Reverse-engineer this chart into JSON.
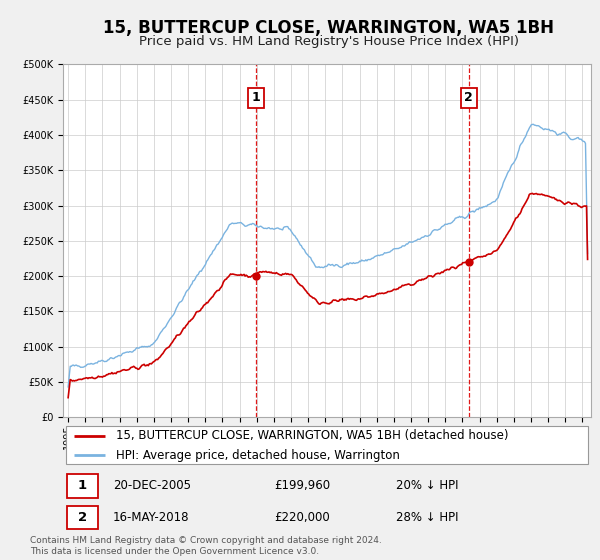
{
  "title": "15, BUTTERCUP CLOSE, WARRINGTON, WA5 1BH",
  "subtitle": "Price paid vs. HM Land Registry's House Price Index (HPI)",
  "ylim": [
    0,
    500000
  ],
  "yticks": [
    0,
    50000,
    100000,
    150000,
    200000,
    250000,
    300000,
    350000,
    400000,
    450000,
    500000
  ],
  "ytick_labels": [
    "£0",
    "£50K",
    "£100K",
    "£150K",
    "£200K",
    "£250K",
    "£300K",
    "£350K",
    "£400K",
    "£450K",
    "£500K"
  ],
  "xlim_start": 1994.7,
  "xlim_end": 2025.5,
  "xticks": [
    1995,
    1996,
    1997,
    1998,
    1999,
    2000,
    2001,
    2002,
    2003,
    2004,
    2005,
    2006,
    2007,
    2008,
    2009,
    2010,
    2011,
    2012,
    2013,
    2014,
    2015,
    2016,
    2017,
    2018,
    2019,
    2020,
    2021,
    2022,
    2023,
    2024,
    2025
  ],
  "background_color": "#f0f0f0",
  "plot_bg_color": "#ffffff",
  "grid_color": "#cccccc",
  "hpi_color": "#7ab3e0",
  "price_color": "#cc0000",
  "sale1_x": 2005.97,
  "sale1_y": 199960,
  "sale2_x": 2018.37,
  "sale2_y": 220000,
  "vline_color": "#dd0000",
  "legend_label_price": "15, BUTTERCUP CLOSE, WARRINGTON, WA5 1BH (detached house)",
  "legend_label_hpi": "HPI: Average price, detached house, Warrington",
  "table_row1": [
    "1",
    "20-DEC-2005",
    "£199,960",
    "20% ↓ HPI"
  ],
  "table_row2": [
    "2",
    "16-MAY-2018",
    "£220,000",
    "28% ↓ HPI"
  ],
  "footer": "Contains HM Land Registry data © Crown copyright and database right 2024.\nThis data is licensed under the Open Government Licence v3.0.",
  "title_fontsize": 12,
  "subtitle_fontsize": 9.5,
  "tick_fontsize": 7,
  "legend_fontsize": 8.5,
  "table_fontsize": 8.5,
  "footer_fontsize": 6.5
}
